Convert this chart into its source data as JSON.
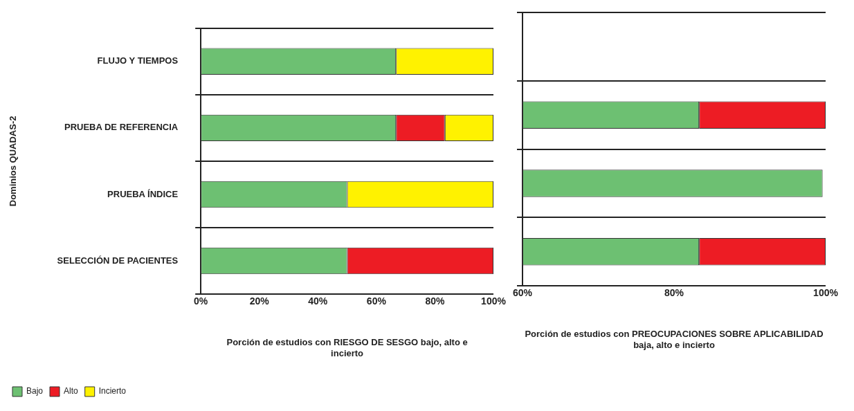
{
  "chart_data": [
    {
      "type": "bar",
      "orientation": "horizontal",
      "stacked": true,
      "ylabel": "Dominios QUADAS-2",
      "xlabel": "Porción de estudios con RIESGO DE SESGO bajo, alto e incierto",
      "categories": [
        "FLUJO Y TIEMPOS",
        "PRUEBA DE REFERENCIA",
        "PRUEBA ÍNDICE",
        "SELECCIÓN DE PACIENTES"
      ],
      "xlim": [
        0,
        100
      ],
      "xticks": [
        {
          "value": 0,
          "label": "0%"
        },
        {
          "value": 20,
          "label": "20%"
        },
        {
          "value": 40,
          "label": "40%"
        },
        {
          "value": 60,
          "label": "60%"
        },
        {
          "value": 80,
          "label": "80%"
        },
        {
          "value": 100,
          "label": "100%"
        }
      ],
      "grid": "y",
      "legend": "bottom left",
      "series": [
        {
          "name": "Bajo",
          "color": "#6dc072",
          "values": [
            66.7,
            66.7,
            50,
            50
          ]
        },
        {
          "name": "Alto",
          "color": "#ed1c24",
          "values": [
            0,
            16.7,
            0,
            50
          ]
        },
        {
          "name": "Incierto",
          "color": "#fff200",
          "values": [
            33.3,
            16.6,
            50,
            0
          ]
        }
      ]
    },
    {
      "type": "bar",
      "orientation": "horizontal",
      "xlabel": "Porción de estudios con PREOCUPACIONES SOBRE APLICABILIDAD baja, alto e incierto",
      "categories": [
        null,
        null,
        null,
        null
      ],
      "tick_labels": "x",
      "xlim": [
        60,
        100
      ],
      "xticks": [
        {
          "value": 60,
          "label": "60%"
        },
        {
          "value": 80,
          "label": "80%"
        },
        {
          "value": 100,
          "label": "100%"
        }
      ],
      "grid": "y",
      "series": [
        {
          "color": "#6dc072",
          "base": [
            null,
            60,
            60,
            60
          ],
          "values": [
            null,
            23.3,
            39.6,
            23.3
          ]
        },
        {
          "color": "#ed1c24",
          "base": [
            null,
            83.3,
            null,
            83.3
          ],
          "values": [
            null,
            16.7,
            null,
            16.7
          ]
        }
      ]
    }
  ]
}
